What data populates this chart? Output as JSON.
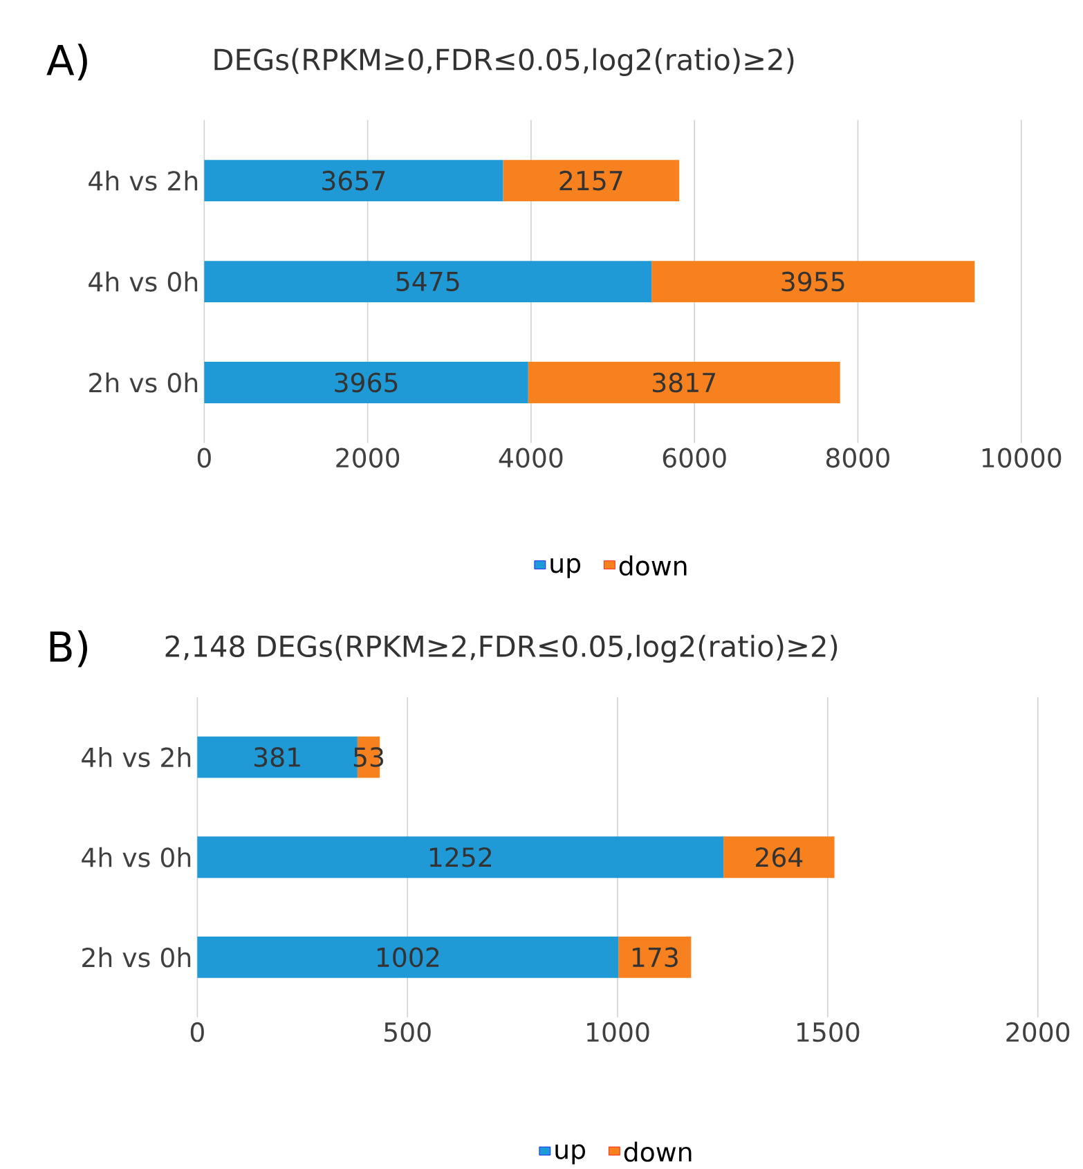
{
  "chart_data": [
    {
      "type": "bar",
      "orientation": "horizontal",
      "stacked": true,
      "title": "A)",
      "subtitle": "DEGs(RPKM≥0,FDR≤0.05,log2(ratio)≥2)",
      "categories": [
        "4h vs 2h",
        "4h vs 0h",
        "2h vs 0h"
      ],
      "series": [
        {
          "name": "up",
          "color": "#1f9ad6",
          "values": [
            3657,
            5475,
            3965
          ]
        },
        {
          "name": "down",
          "color": "#f7801f",
          "values": [
            2157,
            3955,
            3817
          ]
        }
      ],
      "xlim": [
        0,
        10000
      ],
      "xticks": [
        0,
        2000,
        4000,
        6000,
        8000,
        10000
      ],
      "grid": "x",
      "legend": "bottom",
      "data_labels": true
    },
    {
      "type": "bar",
      "orientation": "horizontal",
      "stacked": true,
      "title": "B)",
      "subtitle": "2,148 DEGs(RPKM≥2,FDR≤0.05,log2(ratio)≥2)",
      "categories": [
        "4h vs 2h",
        "4h vs 0h",
        "2h vs 0h"
      ],
      "series": [
        {
          "name": "up",
          "color": "#1f9ad6",
          "values": [
            381,
            1252,
            1002
          ]
        },
        {
          "name": "down",
          "color": "#f7801f",
          "values": [
            53,
            264,
            173
          ]
        }
      ],
      "xlim": [
        0,
        2000
      ],
      "xticks": [
        0,
        500,
        1000,
        1500,
        2000
      ],
      "grid": "x",
      "legend": "bottom",
      "data_labels": true
    }
  ]
}
